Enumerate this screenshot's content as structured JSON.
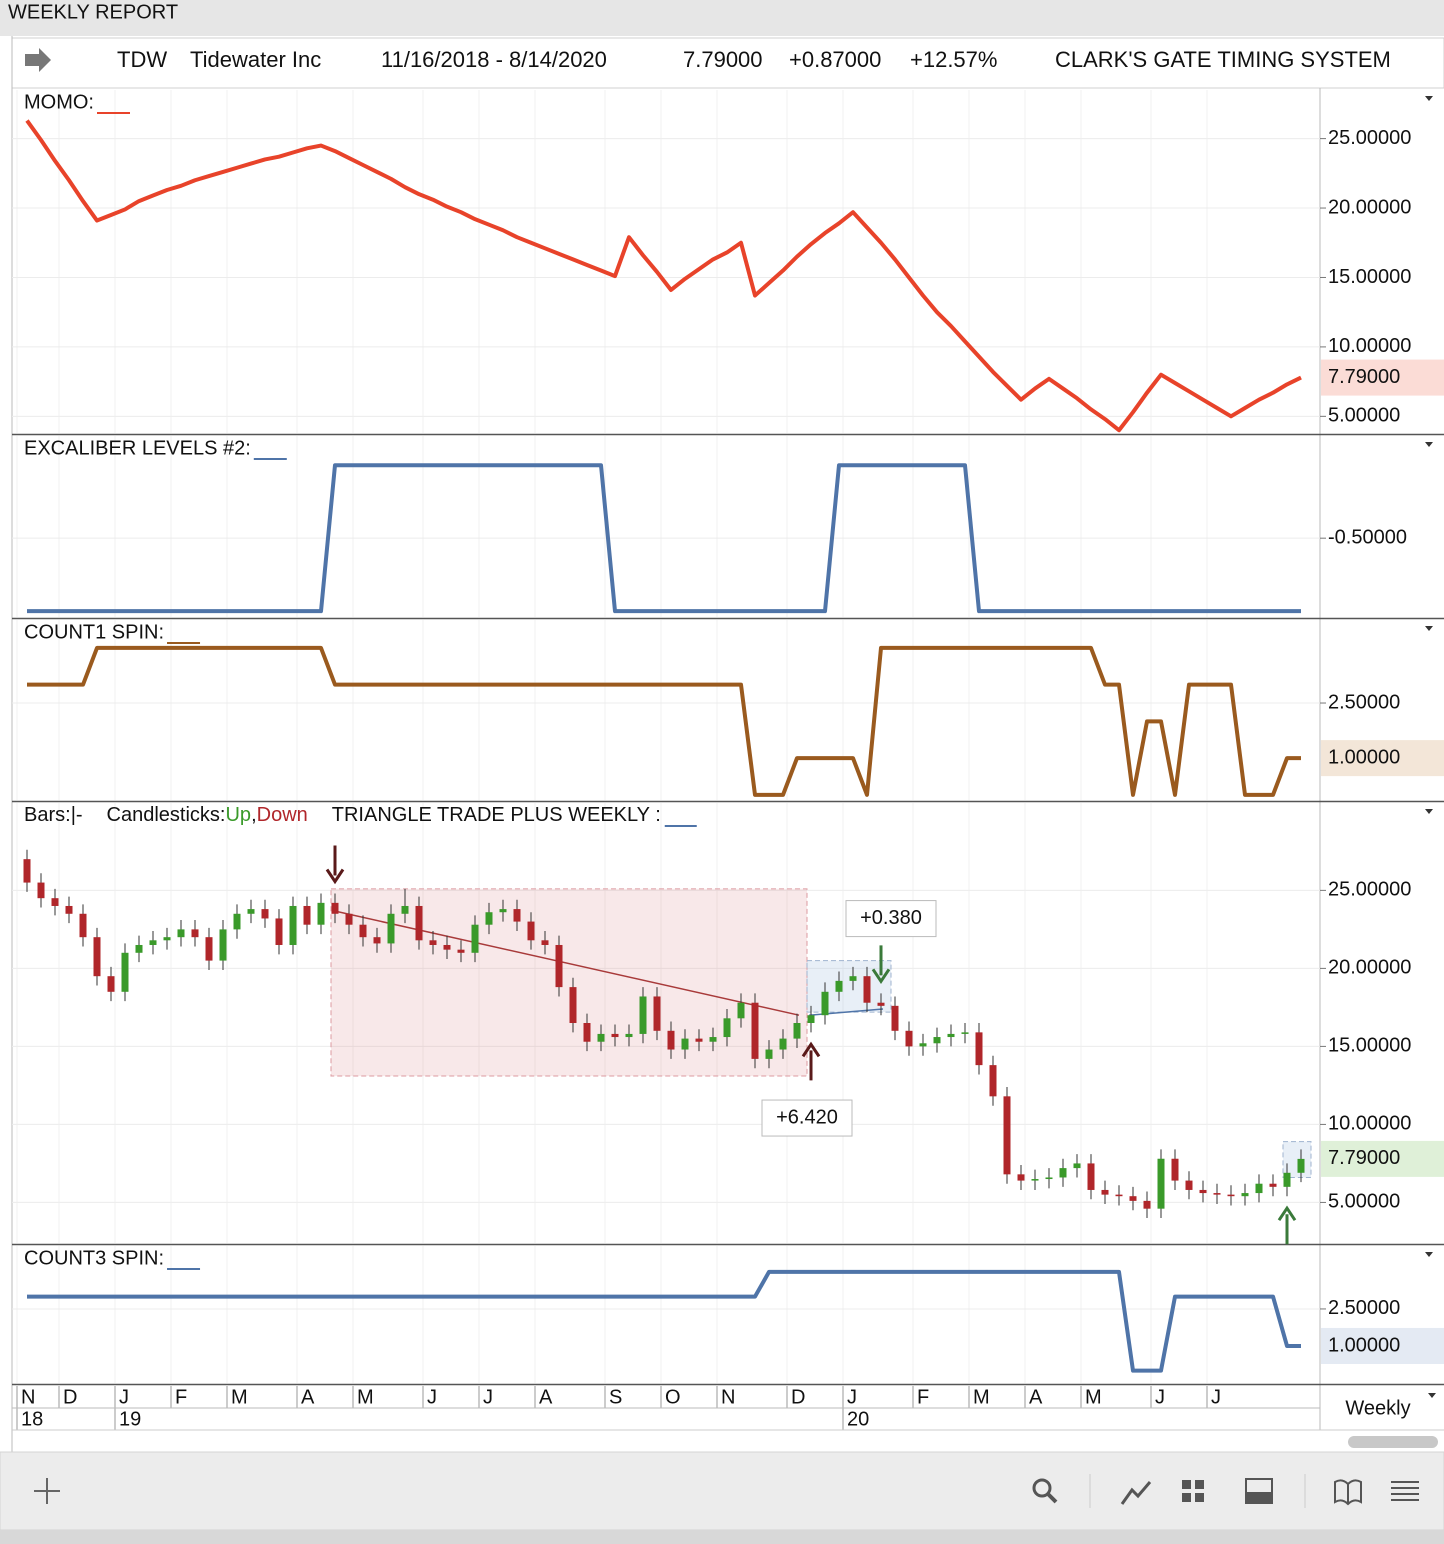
{
  "window": {
    "title": "WEEKLY REPORT"
  },
  "header": {
    "symbol": "TDW",
    "name": "Tidewater Inc",
    "range": "11/16/2018 - 8/14/2020",
    "last": "7.79000",
    "change": "+0.87000",
    "percent": "+12.57%",
    "system": "CLARK'S GATE TIMING SYSTEM"
  },
  "x_axis": {
    "categories": [
      "N",
      null,
      null,
      "D",
      null,
      null,
      null,
      "J",
      null,
      null,
      null,
      "F",
      null,
      null,
      null,
      "M",
      null,
      null,
      null,
      null,
      "A",
      null,
      null,
      null,
      "M",
      null,
      null,
      null,
      null,
      "J",
      null,
      null,
      null,
      "J",
      null,
      null,
      null,
      "A",
      null,
      null,
      null,
      null,
      "S",
      null,
      null,
      null,
      "O",
      null,
      null,
      null,
      "N",
      null,
      null,
      null,
      null,
      "D",
      null,
      null,
      null,
      "J",
      null,
      null,
      null,
      null,
      "F",
      null,
      null,
      null,
      "M",
      null,
      null,
      null,
      "A",
      null,
      null,
      null,
      "M",
      null,
      null,
      null,
      null,
      "J",
      null,
      null,
      null,
      "J",
      null,
      null,
      null,
      null,
      null,
      null
    ],
    "years": [
      "18",
      null,
      null,
      null,
      null,
      null,
      null,
      "19",
      null,
      null,
      null,
      null,
      null,
      null,
      null,
      null,
      null,
      null,
      null,
      null,
      null,
      null,
      null,
      null,
      null,
      null,
      null,
      null,
      null,
      null,
      null,
      null,
      null,
      null,
      null,
      null,
      null,
      null,
      null,
      null,
      null,
      null,
      null,
      null,
      null,
      null,
      null,
      null,
      null,
      null,
      null,
      null,
      null,
      null,
      null,
      null,
      null,
      null,
      null,
      "20",
      null,
      null,
      null,
      null,
      null,
      null,
      null,
      null,
      null,
      null,
      null,
      null,
      null,
      null,
      null,
      null,
      null,
      null,
      null,
      null,
      null,
      null,
      null,
      null,
      null,
      null,
      null,
      null,
      null,
      null,
      null,
      null
    ],
    "period": "Weekly"
  },
  "chart_data": [
    {
      "type": "line",
      "title": "MOMO:",
      "color": "#e8432a",
      "series": [
        {
          "color": "#e8432a",
          "values": [
            26.3,
            24.9,
            23.4,
            22.0,
            20.5,
            19.1,
            19.5,
            19.9,
            20.5,
            20.9,
            21.3,
            21.6,
            22.0,
            22.3,
            22.6,
            22.9,
            23.2,
            23.5,
            23.7,
            24.0,
            24.3,
            24.5,
            24.1,
            23.6,
            23.1,
            22.6,
            22.1,
            21.5,
            21.0,
            20.6,
            20.1,
            19.7,
            19.2,
            18.8,
            18.4,
            17.9,
            17.5,
            17.1,
            16.7,
            16.3,
            15.9,
            15.5,
            15.1,
            17.9,
            16.6,
            15.4,
            14.1,
            14.9,
            15.6,
            16.3,
            16.8,
            17.5,
            13.7,
            14.6,
            15.5,
            16.5,
            17.4,
            18.2,
            18.9,
            19.7,
            18.6,
            17.5,
            16.3,
            15.0,
            13.7,
            12.5,
            11.5,
            10.4,
            9.3,
            8.2,
            7.2,
            6.2,
            7.0,
            7.7,
            7.0,
            6.3,
            5.5,
            4.8,
            4.0,
            5.3,
            6.7,
            8.0,
            7.4,
            6.8,
            6.2,
            5.6,
            5.0,
            5.6,
            6.2,
            6.7,
            7.3,
            7.79
          ]
        }
      ],
      "ylim": [
        3.8,
        28.5
      ],
      "yticks": [
        {
          "value": 5,
          "label": "5.00000"
        },
        {
          "value": 10,
          "label": "10.00000"
        },
        {
          "value": 15,
          "label": "15.00000"
        },
        {
          "value": 20,
          "label": "20.00000"
        },
        {
          "value": 25,
          "label": "25.00000"
        }
      ],
      "last_label": "7.79000",
      "last_bg": "#fbdcd6",
      "last_fg": "#c0392b"
    },
    {
      "type": "line",
      "title": "EXCALIBER LEVELS #2:",
      "color": "#4f74a8",
      "series": [
        {
          "color": "#4f74a8",
          "values": [
            -1,
            -1,
            -1,
            -1,
            -1,
            -1,
            -1,
            -1,
            -1,
            -1,
            -1,
            -1,
            -1,
            -1,
            -1,
            -1,
            -1,
            -1,
            -1,
            -1,
            -1,
            -1,
            0,
            0,
            0,
            0,
            0,
            0,
            0,
            0,
            0,
            0,
            0,
            0,
            0,
            0,
            0,
            0,
            0,
            0,
            0,
            0,
            -1,
            -1,
            -1,
            -1,
            -1,
            -1,
            -1,
            -1,
            -1,
            -1,
            -1,
            -1,
            -1,
            -1,
            -1,
            -1,
            0,
            0,
            0,
            0,
            0,
            0,
            0,
            0,
            0,
            0,
            -1,
            -1,
            -1,
            -1,
            -1,
            -1,
            -1,
            -1,
            -1,
            -1,
            -1,
            -1,
            -1,
            -1,
            -1,
            -1,
            -1,
            -1,
            -1,
            -1,
            -1,
            -1,
            -1,
            -1
          ]
        }
      ],
      "ylim": [
        -1.04,
        0.2
      ],
      "yticks": [
        {
          "value": -0.5,
          "label": "-0.50000"
        }
      ]
    },
    {
      "type": "line",
      "title": "COUNT1 SPIN:",
      "color": "#9a5a1e",
      "series": [
        {
          "color": "#9a5a1e",
          "values": [
            3,
            3,
            3,
            3,
            3,
            4,
            4,
            4,
            4,
            4,
            4,
            4,
            4,
            4,
            4,
            4,
            4,
            4,
            4,
            4,
            4,
            4,
            3,
            3,
            3,
            3,
            3,
            3,
            3,
            3,
            3,
            3,
            3,
            3,
            3,
            3,
            3,
            3,
            3,
            3,
            3,
            3,
            3,
            3,
            3,
            3,
            3,
            3,
            3,
            3,
            3,
            3,
            0,
            0,
            0,
            1,
            1,
            1,
            1,
            1,
            0,
            4,
            4,
            4,
            4,
            4,
            4,
            4,
            4,
            4,
            4,
            4,
            4,
            4,
            4,
            4,
            4,
            3,
            3,
            0,
            2,
            2,
            0,
            3,
            3,
            3,
            3,
            0,
            0,
            0,
            1,
            1
          ]
        }
      ],
      "ylim": [
        -0.14,
        4.76
      ],
      "yticks": [
        {
          "value": 2.5,
          "label": "2.50000"
        }
      ],
      "last_label": "1.00000",
      "last_bg": "#f3e6d8",
      "last_fg": "#8a5a2a"
    },
    {
      "type": "candlestick",
      "legend": {
        "bars": "Bars:",
        "bars_mark": "|-",
        "candles": "Candlesticks:",
        "up": "Up",
        "sep": ",",
        "down": "Down",
        "indicator": "TRIANGLE TRADE PLUS WEEKLY :"
      },
      "color": "#4f74a8",
      "up_color": "#3a9a2a",
      "down_color": "#b0262a",
      "open": [
        27.0,
        25.5,
        24.5,
        24.0,
        23.5,
        22.0,
        19.5,
        18.5,
        21.0,
        21.5,
        21.8,
        22.0,
        22.5,
        22.0,
        20.5,
        22.5,
        23.5,
        23.8,
        23.2,
        21.5,
        24.0,
        22.8,
        24.2,
        23.5,
        22.8,
        22.0,
        21.6,
        23.5,
        24.0,
        21.8,
        21.5,
        21.2,
        21.0,
        22.8,
        23.6,
        23.8,
        23.0,
        21.8,
        21.5,
        18.8,
        16.5,
        15.3,
        15.8,
        15.6,
        15.8,
        18.2,
        16.0,
        14.8,
        15.5,
        15.3,
        15.6,
        16.8,
        17.8,
        14.2,
        14.8,
        15.5,
        16.5,
        17.0,
        18.5,
        19.2,
        19.5,
        17.8,
        17.6,
        16.0,
        15.0,
        15.2,
        15.6,
        15.8,
        15.9,
        13.8,
        11.8,
        6.8,
        6.4,
        6.5,
        6.6,
        7.2,
        7.5,
        5.8,
        5.5,
        5.4,
        5.1,
        4.6,
        7.8,
        6.4,
        5.8,
        5.6,
        5.5,
        5.4,
        5.6,
        6.2,
        6.0,
        6.9
      ],
      "high": [
        27.6,
        26.1,
        25.1,
        24.6,
        24.1,
        22.6,
        20.1,
        21.6,
        22.1,
        22.4,
        22.6,
        23.1,
        23.1,
        22.6,
        23.1,
        24.1,
        24.4,
        24.4,
        23.8,
        24.6,
        24.6,
        24.8,
        24.8,
        24.1,
        23.4,
        22.6,
        24.1,
        25.1,
        24.6,
        22.4,
        22.1,
        21.8,
        23.4,
        24.2,
        24.4,
        24.4,
        23.6,
        22.4,
        22.1,
        19.4,
        17.1,
        16.4,
        16.4,
        16.4,
        18.8,
        18.8,
        16.6,
        16.1,
        16.1,
        16.2,
        17.4,
        18.4,
        18.4,
        15.4,
        16.1,
        17.1,
        17.6,
        19.1,
        19.8,
        20.1,
        20.1,
        18.4,
        18.2,
        16.6,
        15.8,
        16.2,
        16.4,
        16.5,
        16.5,
        14.4,
        12.4,
        7.4,
        7.1,
        7.2,
        7.8,
        8.1,
        8.1,
        6.4,
        6.1,
        6.0,
        5.7,
        8.4,
        8.4,
        7.0,
        6.4,
        6.2,
        6.1,
        6.2,
        6.8,
        6.8,
        7.5,
        8.4
      ],
      "low": [
        24.9,
        23.9,
        23.4,
        22.9,
        21.4,
        18.9,
        17.9,
        17.9,
        20.4,
        20.9,
        21.2,
        21.4,
        21.4,
        19.9,
        19.9,
        21.9,
        22.9,
        22.6,
        20.9,
        20.9,
        22.2,
        22.2,
        22.9,
        22.2,
        21.4,
        21.0,
        21.0,
        22.9,
        21.2,
        20.9,
        20.6,
        20.4,
        20.4,
        22.2,
        23.0,
        22.4,
        21.2,
        20.9,
        18.2,
        15.9,
        14.7,
        14.7,
        15.0,
        15.0,
        15.2,
        15.4,
        14.2,
        14.2,
        14.7,
        14.7,
        15.0,
        16.2,
        13.6,
        13.6,
        14.2,
        14.9,
        15.9,
        16.4,
        17.9,
        18.6,
        17.2,
        17.0,
        15.4,
        14.4,
        14.4,
        14.6,
        15.0,
        15.2,
        13.2,
        11.2,
        6.2,
        5.8,
        5.8,
        5.9,
        6.0,
        6.6,
        5.2,
        4.9,
        4.8,
        4.5,
        4.0,
        4.0,
        5.8,
        5.2,
        5.0,
        4.9,
        4.8,
        4.8,
        5.0,
        5.4,
        5.4,
        6.3
      ],
      "close": [
        25.5,
        24.5,
        24.0,
        23.5,
        22.0,
        19.5,
        18.5,
        21.0,
        21.5,
        21.8,
        22.0,
        22.5,
        22.0,
        20.5,
        22.5,
        23.5,
        23.8,
        23.2,
        21.5,
        24.0,
        22.8,
        24.2,
        23.5,
        22.8,
        22.0,
        21.6,
        23.5,
        24.0,
        21.8,
        21.5,
        21.2,
        21.0,
        22.8,
        23.6,
        23.8,
        23.0,
        21.8,
        21.5,
        18.8,
        16.5,
        15.3,
        15.8,
        15.6,
        15.8,
        18.2,
        16.0,
        14.8,
        15.5,
        15.3,
        15.6,
        16.8,
        17.8,
        14.2,
        14.8,
        15.5,
        16.5,
        17.0,
        18.5,
        19.2,
        19.5,
        17.8,
        17.6,
        16.0,
        15.0,
        15.2,
        15.6,
        15.8,
        15.9,
        13.8,
        11.8,
        6.8,
        6.4,
        6.5,
        6.6,
        7.2,
        7.5,
        5.8,
        5.5,
        5.4,
        5.1,
        4.6,
        7.8,
        6.4,
        5.8,
        5.6,
        5.5,
        5.4,
        5.6,
        6.2,
        6.0,
        6.9,
        7.79
      ],
      "zones": [
        {
          "start": 22,
          "end": 55,
          "top": 25.1,
          "bottom": 13.1,
          "fill": "rgba(214,110,120,0.16)",
          "stroke": "#dc9aa0",
          "line": [
            23.7,
            17.0
          ],
          "line_color": "#a83a3a",
          "label": "+6.420",
          "label_color": "#8b1a1a",
          "label_side": "below"
        },
        {
          "start": 56,
          "end": 61,
          "top": 20.5,
          "bottom": 17.2,
          "fill": "rgba(150,180,220,0.22)",
          "stroke": "#9fb3cf",
          "line": [
            17.0,
            17.4
          ],
          "line_color": "#4f74a8",
          "label": "+0.380",
          "label_color": "#3a8a3a",
          "label_side": "above"
        },
        {
          "start": 90,
          "end": 91,
          "top": 8.9,
          "bottom": 6.6,
          "fill": "rgba(150,180,220,0.22)",
          "stroke": "#9fb3cf"
        }
      ],
      "arrows": [
        {
          "at": 22,
          "dir": "down",
          "color": "#5a1a1a"
        },
        {
          "at": 56,
          "dir": "up",
          "color": "#5a1a1a"
        },
        {
          "at": 61,
          "dir": "down",
          "color": "#3a7a3a"
        },
        {
          "at": 90,
          "dir": "up",
          "color": "#3a7a3a"
        }
      ],
      "ylim": [
        2.4,
        30.6
      ],
      "yticks": [
        {
          "value": 5,
          "label": "5.00000"
        },
        {
          "value": 10,
          "label": "10.00000"
        },
        {
          "value": 15,
          "label": "15.00000"
        },
        {
          "value": 20,
          "label": "20.00000"
        },
        {
          "value": 25,
          "label": "25.00000"
        }
      ],
      "last_label": "7.79000",
      "last_bg": "#dff0d8",
      "last_fg": "#3a7a2a"
    },
    {
      "type": "line",
      "title": "COUNT3 SPIN:",
      "color": "#4f74a8",
      "series": [
        {
          "color": "#4f74a8",
          "values": [
            3,
            3,
            3,
            3,
            3,
            3,
            3,
            3,
            3,
            3,
            3,
            3,
            3,
            3,
            3,
            3,
            3,
            3,
            3,
            3,
            3,
            3,
            3,
            3,
            3,
            3,
            3,
            3,
            3,
            3,
            3,
            3,
            3,
            3,
            3,
            3,
            3,
            3,
            3,
            3,
            3,
            3,
            3,
            3,
            3,
            3,
            3,
            3,
            3,
            3,
            3,
            3,
            3,
            4,
            4,
            4,
            4,
            4,
            4,
            4,
            4,
            4,
            4,
            4,
            4,
            4,
            4,
            4,
            4,
            4,
            4,
            4,
            4,
            4,
            4,
            4,
            4,
            4,
            4,
            0,
            0,
            0,
            3,
            3,
            3,
            3,
            3,
            3,
            3,
            3,
            1,
            1
          ]
        }
      ],
      "ylim": [
        -0.5,
        5.05
      ],
      "yticks": [
        {
          "value": 2.5,
          "label": "2.50000"
        }
      ],
      "last_label": "1.00000",
      "last_bg": "#e4eaf3",
      "last_fg": "#3a5a8a"
    }
  ]
}
